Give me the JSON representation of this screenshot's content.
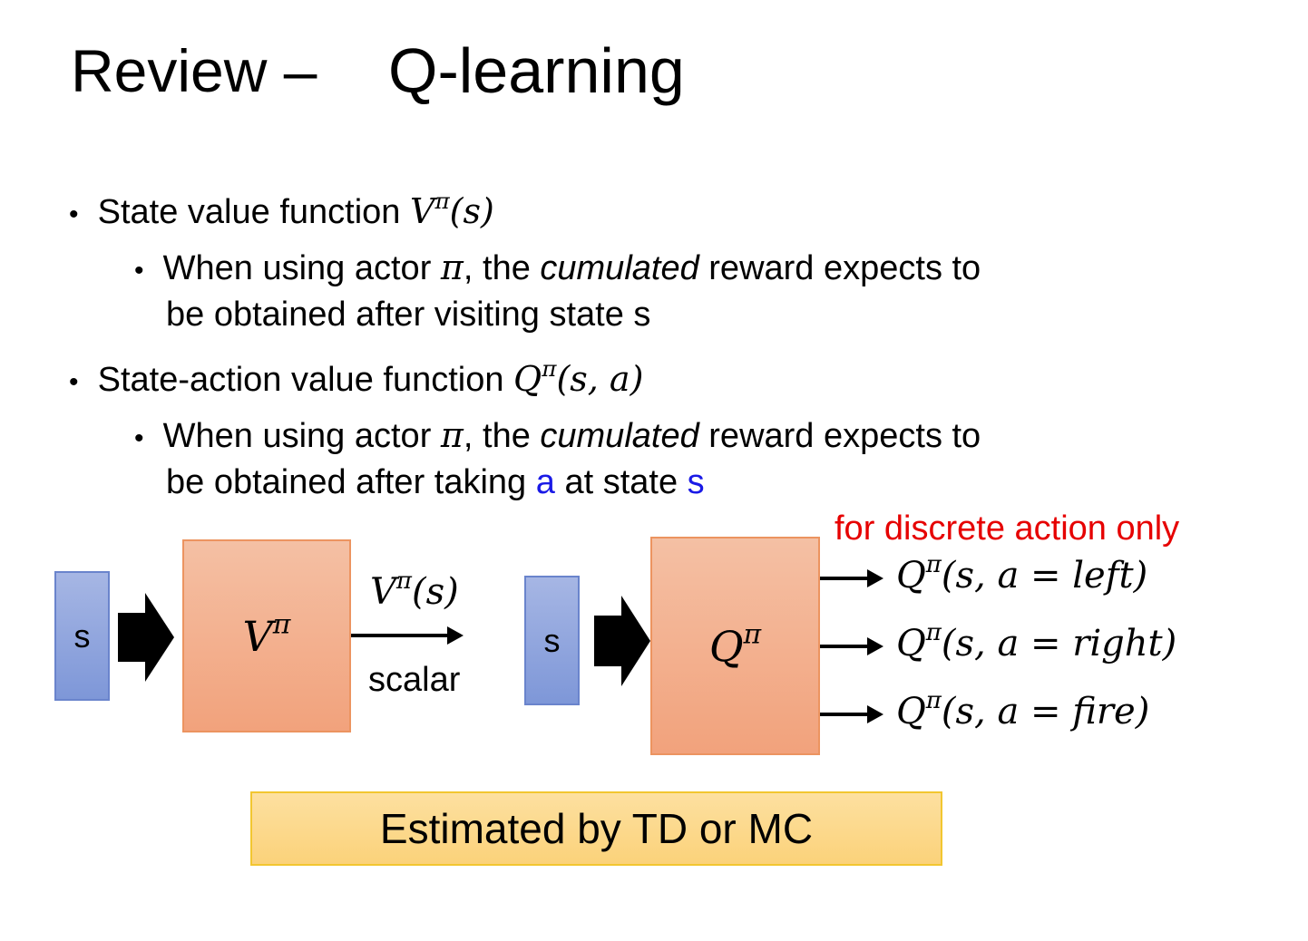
{
  "title": {
    "prefix": "Review –",
    "main": "Q-learning"
  },
  "bullets": [
    {
      "text": "State value function ",
      "math": {
        "base": "V",
        "sup": "π",
        "args": "(s)"
      },
      "sub": {
        "l1a": "When using actor ",
        "pi": "π",
        "l1b": ", the ",
        "em": "cumulated",
        "l1c": " reward expects to",
        "l2": "be obtained after visiting state s"
      }
    },
    {
      "text": "State-action value function ",
      "math": {
        "base": "Q",
        "sup": "π",
        "args": "(s, a)"
      },
      "sub": {
        "l1a": "When using actor ",
        "pi": "π",
        "l1b": ", the ",
        "em": "cumulated",
        "l1c": " reward expects to",
        "l2a": "be obtained after taking ",
        "a": "a",
        "l2b": " at state ",
        "s": "s"
      }
    }
  ],
  "diagram": {
    "note": "for discrete action only",
    "left": {
      "input": "s",
      "box": {
        "base": "V",
        "sup": "π"
      },
      "output": {
        "base": "V",
        "sup": "π",
        "args": "(s)"
      },
      "output_label": "scalar"
    },
    "right": {
      "input": "s",
      "box": {
        "base": "Q",
        "sup": "π"
      },
      "outputs": [
        {
          "base": "Q",
          "sup": "π",
          "args": "(s, a = left)"
        },
        {
          "base": "Q",
          "sup": "π",
          "args": "(s, a = right)"
        },
        {
          "base": "Q",
          "sup": "π",
          "args": "(s, a = fire)"
        }
      ]
    }
  },
  "footer": "Estimated by TD or MC",
  "colors": {
    "highlight_blue": "#1a1ae6",
    "note_red": "#e60000",
    "state_box": "#8fa5dd",
    "network_box": "#f3b08f",
    "footer_box": "#fcd88c"
  }
}
